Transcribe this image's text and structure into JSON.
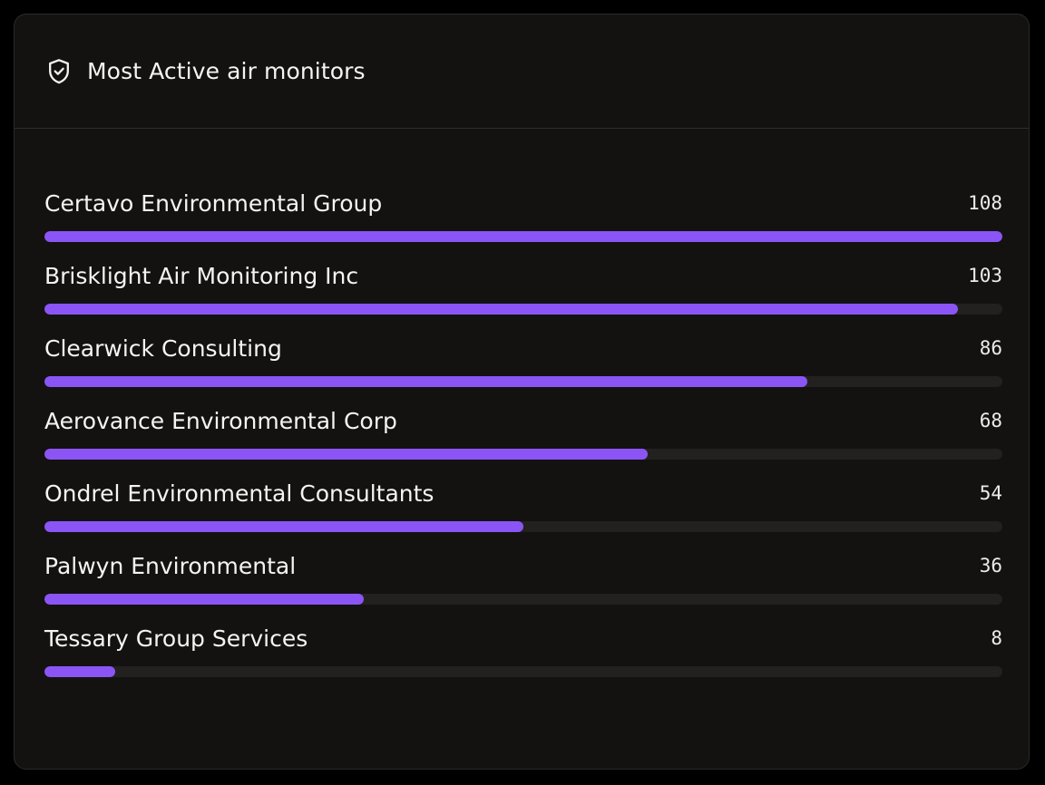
{
  "card": {
    "title": "Most Active air monitors",
    "icon": "shield-check-icon",
    "accent_color": "#8b55f5"
  },
  "rows": [
    {
      "label": "Certavo Environmental Group",
      "value": "108",
      "fraction": 1.0
    },
    {
      "label": "Brisklight Air Monitoring Inc",
      "value": "103",
      "fraction": 0.9537
    },
    {
      "label": "Clearwick Consulting",
      "value": "86",
      "fraction": 0.7963
    },
    {
      "label": "Aerovance Environmental Corp",
      "value": "68",
      "fraction": 0.6296
    },
    {
      "label": "Ondrel Environmental Consultants",
      "value": "54",
      "fraction": 0.5
    },
    {
      "label": "Palwyn Environmental",
      "value": "36",
      "fraction": 0.3333
    },
    {
      "label": "Tessary Group Services",
      "value": "8",
      "fraction": 0.0741
    }
  ]
}
